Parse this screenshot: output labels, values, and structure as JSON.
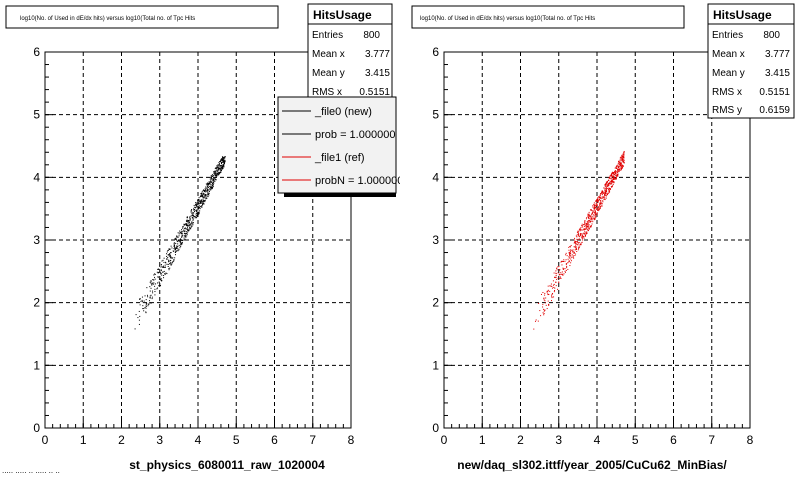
{
  "footer": "..... ..... .. ..... .. ..",
  "chart_data": [
    {
      "type": "scatter",
      "title": "log10(No. of Used in dE/dx hits) versus log10(Total no. of Tpc Hits",
      "xlabel": "st_physics_6080011_raw_1020004",
      "ylabel": "",
      "xlim": [
        0,
        8
      ],
      "ylim": [
        0,
        6
      ],
      "xticks": [
        "0",
        "1",
        "2",
        "3",
        "4",
        "5",
        "6",
        "7",
        "8"
      ],
      "yticks": [
        "0",
        "1",
        "2",
        "3",
        "4",
        "5",
        "6"
      ],
      "grid": true,
      "series": [
        {
          "name": "_file0 (new)",
          "color": "#000000",
          "seed": 7
        }
      ],
      "stats": {
        "name": "HitsUsage",
        "rows": [
          {
            "label": "Entries",
            "value": "800"
          },
          {
            "label": "Mean x",
            "value": "3.777"
          },
          {
            "label": "Mean y",
            "value": "3.415"
          },
          {
            "label": "RMS x",
            "value": "0.5151"
          }
        ]
      },
      "legend": {
        "position": "top-right",
        "entries": [
          {
            "label": "_file0 (new)",
            "color": "#000000"
          },
          {
            "label": "prob = 1.000000",
            "color": "#000000"
          },
          {
            "label": "_file1 (ref)",
            "color": "#e00000"
          },
          {
            "label": "probN = 1.000000",
            "color": "#e00000"
          }
        ]
      }
    },
    {
      "type": "scatter",
      "title": "log10(No. of Used in dE/dx hits) versus log10(Total no. of Tpc Hits",
      "xlabel": "new/daq_sl302.ittf/year_2005/CuCu62_MinBias/",
      "ylabel": "",
      "xlim": [
        0,
        8
      ],
      "ylim": [
        0,
        6
      ],
      "xticks": [
        "0",
        "1",
        "2",
        "3",
        "4",
        "5",
        "6",
        "7",
        "8"
      ],
      "yticks": [
        "0",
        "1",
        "2",
        "3",
        "4",
        "5",
        "6"
      ],
      "grid": true,
      "series": [
        {
          "name": "_file1 (ref)",
          "color": "#e00000",
          "seed": 11
        }
      ],
      "stats": {
        "name": "HitsUsage",
        "rows": [
          {
            "label": "Entries",
            "value": "800"
          },
          {
            "label": "Mean x",
            "value": "3.777"
          },
          {
            "label": "Mean y",
            "value": "3.415"
          },
          {
            "label": "RMS x",
            "value": "0.5151"
          },
          {
            "label": "RMS y",
            "value": "0.6159"
          }
        ]
      }
    }
  ]
}
